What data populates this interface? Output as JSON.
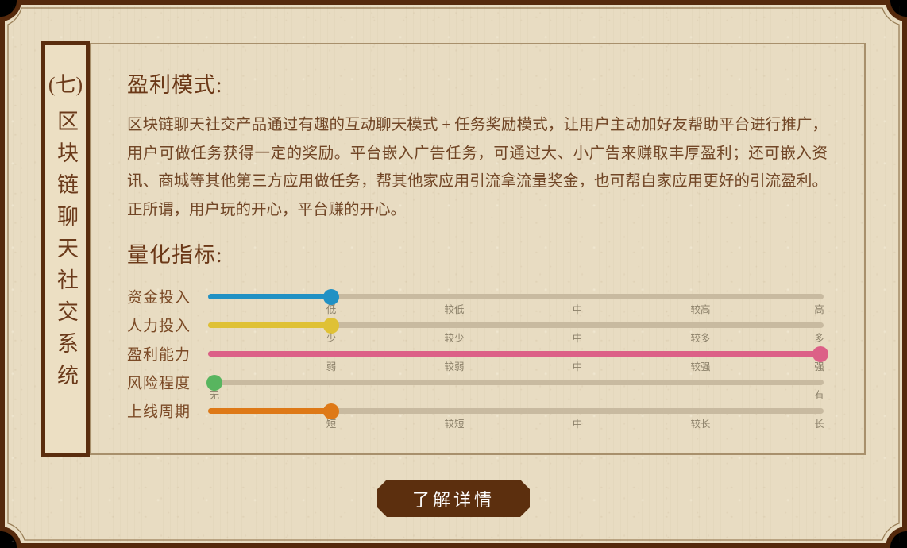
{
  "page": {
    "outside_color": "#000000",
    "frame_color": "#55290c",
    "paper_color": "#e8dcc2",
    "hairline_color": "#9a8059"
  },
  "sidebar": {
    "number": "(七)",
    "title": "区块链聊天社交系统"
  },
  "sections": {
    "profit": {
      "heading": "盈利模式:",
      "body": "区块链聊天社交产品通过有趣的互动聊天模式 + 任务奖励模式，让用户主动加好友帮助平台进行推广，用户可做任务获得一定的奖励。平台嵌入广告任务，可通过大、小广告来赚取丰厚盈利；还可嵌入资讯、商城等其他第三方应用做任务，帮其他家应用引流拿流量奖金，也可帮自家应用更好的引流盈利。正所谓，用户玩的开心，平台赚的开心。"
    },
    "metrics": {
      "heading": "量化指标:",
      "track_color": "#c8baa0",
      "rows": [
        {
          "label": "资金投入",
          "color": "#2191c4",
          "value_pct": 20,
          "value_label": "低",
          "ticks": [
            {
              "t": "低",
              "p": 20
            },
            {
              "t": "较低",
              "p": 40
            },
            {
              "t": "中",
              "p": 60
            },
            {
              "t": "较高",
              "p": 80
            },
            {
              "t": "高",
              "p": 99.3
            }
          ]
        },
        {
          "label": "人力投入",
          "color": "#dfc135",
          "value_pct": 20,
          "value_label": "少",
          "ticks": [
            {
              "t": "少",
              "p": 20
            },
            {
              "t": "较少",
              "p": 40
            },
            {
              "t": "中",
              "p": 60
            },
            {
              "t": "较多",
              "p": 80
            },
            {
              "t": "多",
              "p": 99.3
            }
          ]
        },
        {
          "label": "盈利能力",
          "color": "#dc6087",
          "value_pct": 99.5,
          "value_label": "强",
          "ticks": [
            {
              "t": "弱",
              "p": 20
            },
            {
              "t": "较弱",
              "p": 40
            },
            {
              "t": "中",
              "p": 60
            },
            {
              "t": "较强",
              "p": 80
            },
            {
              "t": "强",
              "p": 99.3
            }
          ]
        },
        {
          "label": "风险程度",
          "color": "#58b55f",
          "value_pct": 1,
          "value_label": "无",
          "ticks": [
            {
              "t": "无",
              "p": 1
            },
            {
              "t": "有",
              "p": 99.3
            }
          ]
        },
        {
          "label": "上线周期",
          "color": "#de7917",
          "value_pct": 20,
          "value_label": "短",
          "ticks": [
            {
              "t": "短",
              "p": 20
            },
            {
              "t": "较短",
              "p": 40
            },
            {
              "t": "中",
              "p": 60
            },
            {
              "t": "较长",
              "p": 80
            },
            {
              "t": "长",
              "p": 99.3
            }
          ]
        }
      ]
    }
  },
  "footer": {
    "detail_button": "了解详情"
  },
  "chart_data": {
    "type": "bar",
    "title": "量化指标",
    "categories": [
      "资金投入",
      "人力投入",
      "盈利能力",
      "风险程度",
      "上线周期"
    ],
    "values": [
      20,
      20,
      100,
      0,
      20
    ],
    "value_labels": [
      "低",
      "少",
      "强",
      "无",
      "短"
    ],
    "scale_labels": [
      [
        "低",
        "较低",
        "中",
        "较高",
        "高"
      ],
      [
        "少",
        "较少",
        "中",
        "较多",
        "多"
      ],
      [
        "弱",
        "较弱",
        "中",
        "较强",
        "强"
      ],
      [
        "无",
        "有"
      ],
      [
        "短",
        "较短",
        "中",
        "较长",
        "长"
      ]
    ],
    "series_colors": [
      "#2191c4",
      "#dfc135",
      "#dc6087",
      "#58b55f",
      "#de7917"
    ],
    "xlim": [
      0,
      100
    ]
  }
}
